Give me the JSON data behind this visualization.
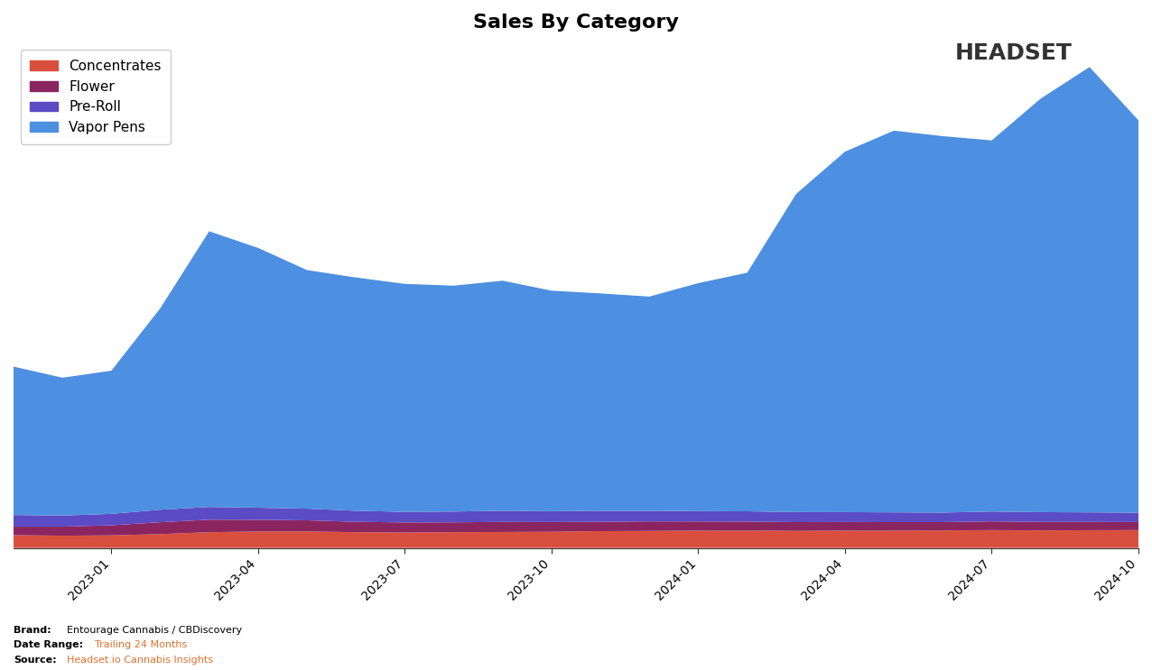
{
  "title": "Sales By Category",
  "categories": [
    "Concentrates",
    "Flower",
    "Pre-Roll",
    "Vapor Pens"
  ],
  "colors": [
    "#d94f3d",
    "#8b2560",
    "#5b4bc4",
    "#4d8fe0"
  ],
  "x_labels": [
    "2023-01",
    "2023-04",
    "2023-07",
    "2023-10",
    "2024-01",
    "2024-04",
    "2024-07",
    "2024-10"
  ],
  "brand": "Entourage Cannabis / CBDiscovery",
  "date_range": "Trailing 24 Months",
  "source": "Headset.io Cannabis Insights",
  "concentrates": [
    120,
    115,
    118,
    130,
    148,
    155,
    155,
    148,
    145,
    148,
    150,
    152,
    158,
    160,
    162,
    163,
    160,
    162,
    163,
    165,
    168,
    165,
    167,
    168
  ],
  "flower": [
    80,
    85,
    95,
    112,
    118,
    110,
    105,
    98,
    95,
    93,
    95,
    92,
    88,
    90,
    87,
    85,
    83,
    82,
    80,
    78,
    82,
    80,
    78,
    76
  ],
  "pre_roll": [
    110,
    105,
    108,
    118,
    120,
    114,
    110,
    104,
    100,
    102,
    105,
    102,
    104,
    100,
    98,
    97,
    95,
    93,
    92,
    90,
    93,
    92,
    90,
    88
  ],
  "vapor_pens": [
    1400,
    1300,
    1350,
    1900,
    2600,
    2450,
    2250,
    2200,
    2150,
    2130,
    2170,
    2080,
    2050,
    2020,
    2150,
    2250,
    3000,
    3400,
    3600,
    3550,
    3500,
    3900,
    4200,
    3700
  ],
  "background_color": "#ffffff",
  "legend_fontsize": 11,
  "title_fontsize": 16
}
